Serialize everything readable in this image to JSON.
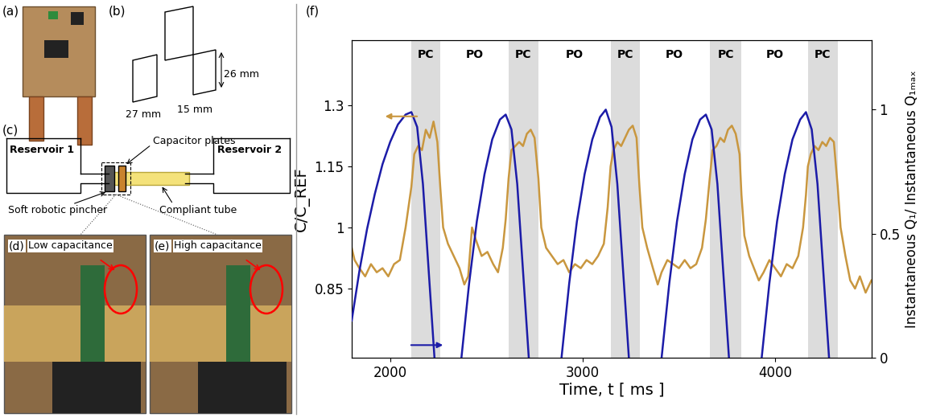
{
  "chart_data": {
    "type": "line",
    "x_label": "Time, t [ ms ]",
    "y_label": "C/C_REF",
    "y2_label": "Instantaneous Q₁/ Instantaneous Q₁ₘₐₓ",
    "xlim": [
      1800,
      4500
    ],
    "xticks": [
      2000,
      3000,
      4000
    ],
    "ylim": [
      0.68,
      1.46
    ],
    "yticks": [
      0.85,
      1,
      1.15,
      1.3
    ],
    "y2lim": [
      0,
      1.28
    ],
    "y2ticks": [
      0,
      0.5,
      1
    ],
    "phases": [
      {
        "label": "PC",
        "start": 2110,
        "end": 2260,
        "color": "#dcdcdc"
      },
      {
        "label": "PO",
        "start": 2260,
        "end": 2615,
        "color": "#ffffff"
      },
      {
        "label": "PC",
        "start": 2615,
        "end": 2770,
        "color": "#dcdcdc"
      },
      {
        "label": "PO",
        "start": 2770,
        "end": 3145,
        "color": "#ffffff"
      },
      {
        "label": "PC",
        "start": 3145,
        "end": 3295,
        "color": "#dcdcdc"
      },
      {
        "label": "PO",
        "start": 3295,
        "end": 3660,
        "color": "#ffffff"
      },
      {
        "label": "PC",
        "start": 3660,
        "end": 3825,
        "color": "#dcdcdc"
      },
      {
        "label": "PO",
        "start": 3825,
        "end": 4170,
        "color": "#ffffff"
      },
      {
        "label": "PC",
        "start": 4170,
        "end": 4325,
        "color": "#dcdcdc"
      }
    ],
    "series": [
      {
        "color": "#c9973f",
        "x": [
          1800,
          1815,
          1840,
          1870,
          1900,
          1930,
          1960,
          1990,
          2020,
          2050,
          2080,
          2110,
          2125,
          2145,
          2165,
          2185,
          2205,
          2225,
          2245,
          2260,
          2275,
          2300,
          2330,
          2360,
          2385,
          2405,
          2425,
          2445,
          2475,
          2505,
          2535,
          2560,
          2585,
          2600,
          2615,
          2630,
          2650,
          2670,
          2690,
          2710,
          2730,
          2750,
          2770,
          2785,
          2810,
          2840,
          2870,
          2900,
          2930,
          2960,
          2990,
          3020,
          3050,
          3080,
          3110,
          3130,
          3145,
          3160,
          3180,
          3200,
          3220,
          3240,
          3260,
          3280,
          3295,
          3310,
          3335,
          3365,
          3390,
          3410,
          3440,
          3470,
          3500,
          3530,
          3560,
          3590,
          3620,
          3640,
          3660,
          3675,
          3695,
          3715,
          3735,
          3755,
          3775,
          3795,
          3815,
          3825,
          3840,
          3865,
          3890,
          3915,
          3940,
          3970,
          4000,
          4030,
          4060,
          4090,
          4120,
          4145,
          4160,
          4170,
          4185,
          4205,
          4225,
          4245,
          4265,
          4285,
          4305,
          4325,
          4340,
          4365,
          4390,
          4415,
          4440,
          4470,
          4500
        ],
        "values": [
          0.95,
          0.92,
          0.9,
          0.88,
          0.91,
          0.89,
          0.9,
          0.88,
          0.91,
          0.92,
          1.0,
          1.1,
          1.18,
          1.2,
          1.19,
          1.24,
          1.22,
          1.26,
          1.21,
          1.1,
          1.0,
          0.96,
          0.93,
          0.9,
          0.86,
          0.88,
          1.0,
          0.97,
          0.93,
          0.94,
          0.91,
          0.89,
          0.95,
          1.02,
          1.12,
          1.19,
          1.2,
          1.21,
          1.2,
          1.23,
          1.24,
          1.22,
          1.12,
          1.0,
          0.95,
          0.93,
          0.91,
          0.92,
          0.89,
          0.91,
          0.9,
          0.92,
          0.91,
          0.93,
          0.96,
          1.05,
          1.15,
          1.19,
          1.21,
          1.2,
          1.22,
          1.24,
          1.25,
          1.22,
          1.1,
          1.0,
          0.95,
          0.9,
          0.86,
          0.89,
          0.92,
          0.91,
          0.9,
          0.92,
          0.9,
          0.91,
          0.95,
          1.02,
          1.12,
          1.19,
          1.2,
          1.22,
          1.21,
          1.24,
          1.25,
          1.23,
          1.18,
          1.08,
          0.98,
          0.93,
          0.9,
          0.87,
          0.89,
          0.92,
          0.9,
          0.88,
          0.91,
          0.9,
          0.93,
          1.0,
          1.08,
          1.15,
          1.18,
          1.2,
          1.19,
          1.21,
          1.2,
          1.22,
          1.21,
          1.1,
          1.0,
          0.93,
          0.87,
          0.85,
          0.88,
          0.84,
          0.87
        ]
      },
      {
        "color": "#1c1ca8",
        "axis": "y2",
        "x": [
          1800,
          1840,
          1880,
          1920,
          1960,
          2000,
          2040,
          2080,
          2110,
          2140,
          2170,
          2200,
          2230,
          2300,
          2370,
          2410,
          2450,
          2490,
          2530,
          2570,
          2600,
          2630,
          2660,
          2690,
          2720,
          2800,
          2890,
          2930,
          2970,
          3010,
          3050,
          3090,
          3120,
          3150,
          3180,
          3210,
          3240,
          3320,
          3410,
          3450,
          3490,
          3530,
          3570,
          3610,
          3640,
          3670,
          3700,
          3730,
          3760,
          3840,
          3930,
          3970,
          4010,
          4050,
          4090,
          4130,
          4160,
          4190,
          4220,
          4250,
          4280
        ],
        "values": [
          0.15,
          0.35,
          0.52,
          0.66,
          0.78,
          0.87,
          0.94,
          0.98,
          0.99,
          0.93,
          0.7,
          0.35,
          0.0,
          null,
          0.0,
          0.3,
          0.55,
          0.74,
          0.88,
          0.96,
          0.98,
          0.92,
          0.7,
          0.35,
          0.0,
          null,
          0.0,
          0.3,
          0.55,
          0.74,
          0.88,
          0.97,
          1.0,
          0.93,
          0.7,
          0.35,
          0.0,
          null,
          0.0,
          0.3,
          0.55,
          0.74,
          0.88,
          0.96,
          0.98,
          0.92,
          0.7,
          0.35,
          0.0,
          null,
          0.0,
          0.3,
          0.55,
          0.74,
          0.88,
          0.96,
          0.99,
          0.92,
          0.7,
          0.35,
          0.0
        ]
      }
    ]
  },
  "panels": {
    "a": {
      "label": "(a)"
    },
    "b": {
      "label": "(b)",
      "dimensions": [
        "27 mm",
        "15 mm",
        "26 mm"
      ]
    },
    "c": {
      "label": "(c)",
      "reservoirs": [
        "Reservoir 1",
        "Reservoir 2"
      ],
      "parts": [
        "Capacitor plates",
        "Soft robotic pincher",
        "Compliant tube"
      ]
    },
    "d": {
      "label": "(d)",
      "caption": "Low capacitance"
    },
    "e": {
      "label": "(e)",
      "caption": "High capacitance"
    },
    "f": {
      "label": "(f)"
    }
  }
}
